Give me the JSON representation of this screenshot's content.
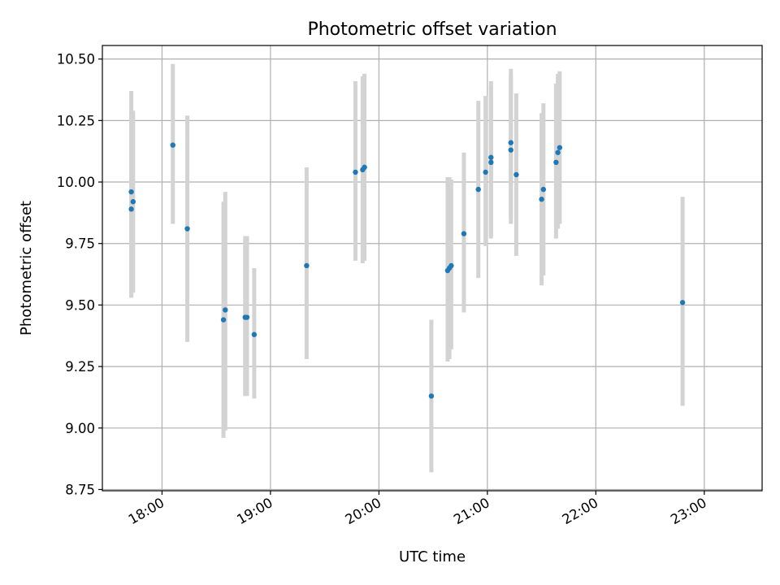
{
  "chart_data": {
    "type": "scatter",
    "title": "Photometric offset variation",
    "xlabel": "UTC time",
    "ylabel": "Photometric offset",
    "grid": true,
    "xlim": [
      "17:27",
      "23:32"
    ],
    "ylim": [
      8.745,
      10.555
    ],
    "x_ticks": [
      "18:00",
      "19:00",
      "20:00",
      "21:00",
      "22:00",
      "23:00"
    ],
    "y_ticks": [
      "8.75",
      "9.00",
      "9.25",
      "9.50",
      "9.75",
      "10.00",
      "10.25",
      "10.50"
    ],
    "colors": {
      "point": "#1f77b4",
      "error_bar": "#d3d3d3",
      "grid": "#b0b0b0"
    },
    "series": [
      {
        "points": [
          {
            "x": "17:43",
            "y": 9.96,
            "err_low": 9.53,
            "err_high": 10.37
          },
          {
            "x": "17:43",
            "y": 9.89,
            "err_low": 9.53,
            "err_high": 10.29
          },
          {
            "x": "17:44",
            "y": 9.92,
            "err_low": 9.55,
            "err_high": 10.29
          },
          {
            "x": "18:06",
            "y": 10.15,
            "err_low": 9.83,
            "err_high": 10.48
          },
          {
            "x": "18:14",
            "y": 9.81,
            "err_low": 9.35,
            "err_high": 10.27
          },
          {
            "x": "18:34",
            "y": 9.44,
            "err_low": 8.96,
            "err_high": 9.92
          },
          {
            "x": "18:35",
            "y": 9.48,
            "err_low": 8.99,
            "err_high": 9.96
          },
          {
            "x": "18:46",
            "y": 9.45,
            "err_low": 9.13,
            "err_high": 9.78
          },
          {
            "x": "18:47",
            "y": 9.45,
            "err_low": 9.13,
            "err_high": 9.78
          },
          {
            "x": "18:51",
            "y": 9.38,
            "err_low": 9.12,
            "err_high": 9.65
          },
          {
            "x": "19:20",
            "y": 9.66,
            "err_low": 9.28,
            "err_high": 10.06
          },
          {
            "x": "19:47",
            "y": 10.04,
            "err_low": 9.68,
            "err_high": 10.41
          },
          {
            "x": "19:51",
            "y": 10.05,
            "err_low": 9.67,
            "err_high": 10.43
          },
          {
            "x": "19:52",
            "y": 10.06,
            "err_low": 9.68,
            "err_high": 10.44
          },
          {
            "x": "20:29",
            "y": 9.13,
            "err_low": 8.82,
            "err_high": 9.44
          },
          {
            "x": "20:38",
            "y": 9.64,
            "err_low": 9.27,
            "err_high": 10.02
          },
          {
            "x": "20:39",
            "y": 9.65,
            "err_low": 9.28,
            "err_high": 10.02
          },
          {
            "x": "20:40",
            "y": 9.66,
            "err_low": 9.32,
            "err_high": 10.01
          },
          {
            "x": "20:47",
            "y": 9.79,
            "err_low": 9.47,
            "err_high": 10.12
          },
          {
            "x": "20:55",
            "y": 9.97,
            "err_low": 9.61,
            "err_high": 10.33
          },
          {
            "x": "20:59",
            "y": 10.04,
            "err_low": 9.74,
            "err_high": 10.35
          },
          {
            "x": "21:02",
            "y": 10.1,
            "err_low": 9.78,
            "err_high": 10.41
          },
          {
            "x": "21:02",
            "y": 10.08,
            "err_low": 9.77,
            "err_high": 10.39
          },
          {
            "x": "21:13",
            "y": 10.13,
            "err_low": 9.83,
            "err_high": 10.43
          },
          {
            "x": "21:13",
            "y": 10.16,
            "err_low": 9.85,
            "err_high": 10.46
          },
          {
            "x": "21:16",
            "y": 10.03,
            "err_low": 9.7,
            "err_high": 10.36
          },
          {
            "x": "21:30",
            "y": 9.93,
            "err_low": 9.58,
            "err_high": 10.28
          },
          {
            "x": "21:31",
            "y": 9.97,
            "err_low": 9.62,
            "err_high": 10.32
          },
          {
            "x": "21:38",
            "y": 10.08,
            "err_low": 9.77,
            "err_high": 10.4
          },
          {
            "x": "21:39",
            "y": 10.12,
            "err_low": 9.81,
            "err_high": 10.44
          },
          {
            "x": "21:40",
            "y": 10.14,
            "err_low": 9.83,
            "err_high": 10.45
          },
          {
            "x": "22:48",
            "y": 9.51,
            "err_low": 9.09,
            "err_high": 9.94
          }
        ]
      }
    ]
  }
}
